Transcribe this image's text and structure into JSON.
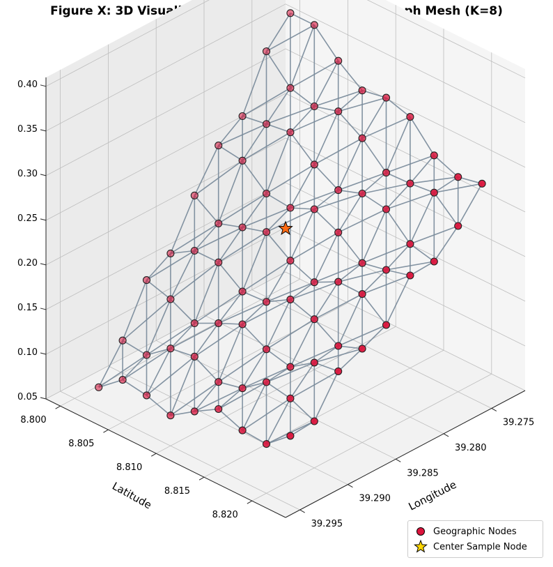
{
  "chart_data": {
    "type": "scatter",
    "title": "Figure X: 3D Visualization of the cKDTree Spatial Graph Mesh (K=8)",
    "xlabel": "Latitude",
    "ylabel": "Longitude",
    "zlabel": "",
    "x_ticks": [
      "8.800",
      "8.805",
      "8.810",
      "8.815",
      "8.820"
    ],
    "y_ticks": [
      "39.275",
      "39.280",
      "39.285",
      "39.290",
      "39.295"
    ],
    "z_ticks": [
      "0.05",
      "0.10",
      "0.15",
      "0.20",
      "0.25",
      "0.30",
      "0.35",
      "0.40"
    ],
    "xlim": [
      8.7985,
      8.8235
    ],
    "ylim": [
      39.2715,
      39.2965
    ],
    "zlim": [
      0.05,
      0.41
    ],
    "grid": true,
    "k_neighbors": 8,
    "series": [
      {
        "name": "Geographic Nodes",
        "color": "#dc143c",
        "edge_color": "#778899",
        "grid_rows_lat": [
          8.8015,
          8.804,
          8.8065,
          8.809,
          8.8115,
          8.814,
          8.8165,
          8.819,
          8.8215
        ],
        "grid_cols_lon": [
          39.274,
          39.2765,
          39.279,
          39.2815,
          39.284,
          39.2865,
          39.289,
          39.2915,
          39.294
        ]
      },
      {
        "name": "Center Sample Node",
        "color": "#ffd700",
        "points": [
          {
            "lat": 8.81,
            "lon": 39.283,
            "z": 0.225
          }
        ]
      }
    ]
  },
  "legend": {
    "items": [
      {
        "label": "Geographic Nodes",
        "marker": "circle",
        "color": "#dc143c"
      },
      {
        "label": "Center Sample Node",
        "marker": "star",
        "color": "#ffd700"
      }
    ]
  }
}
